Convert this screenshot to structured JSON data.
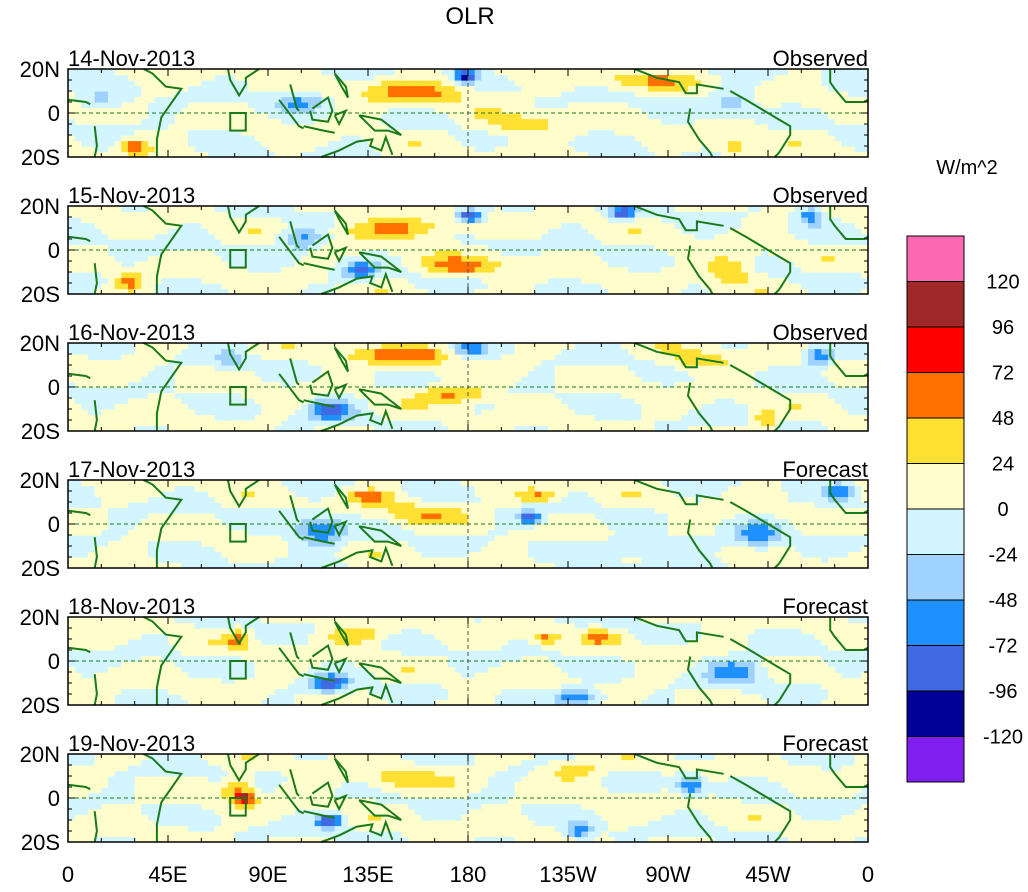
{
  "chart_data": {
    "type": "heatmap",
    "title": "OLR",
    "units_label": "W/m^2",
    "x_ticks": [
      {
        "lon": 0,
        "label": "0"
      },
      {
        "lon": 45,
        "label": "45E"
      },
      {
        "lon": 90,
        "label": "90E"
      },
      {
        "lon": 135,
        "label": "135E"
      },
      {
        "lon": 180,
        "label": "180"
      },
      {
        "lon": 225,
        "label": "135W"
      },
      {
        "lon": 270,
        "label": "90W"
      },
      {
        "lon": 315,
        "label": "45W"
      },
      {
        "lon": 360,
        "label": "0"
      }
    ],
    "y_ticks": [
      {
        "lat": 20,
        "label": "20N"
      },
      {
        "lat": 0,
        "label": "0"
      },
      {
        "lat": -20,
        "label": "20S"
      }
    ],
    "xlim": [
      0,
      360
    ],
    "ylim": [
      -20,
      20
    ],
    "levels": [
      -120,
      -96,
      -72,
      -48,
      -24,
      0,
      24,
      48,
      72,
      96,
      120
    ],
    "level_labels": [
      "-120",
      "-96",
      "-72",
      "-48",
      "-24",
      "0",
      "24",
      "48",
      "72",
      "96",
      "120"
    ],
    "colors": [
      "#8020F0",
      "#000096",
      "#4169E1",
      "#1E90FF",
      "#A0D2FF",
      "#D2F5FF",
      "#FFFDCC",
      "#FFE033",
      "#FF7000",
      "#FF0000",
      "#A02828",
      "#FF69B4"
    ],
    "panels": [
      {
        "date": "14-Nov-2013",
        "type": "Observed",
        "anomalies": [
          [
            155,
            10,
            50,
            25,
            5
          ],
          [
            179,
            17,
            -110,
            5,
            3
          ],
          [
            30,
            -15,
            60,
            6,
            4
          ],
          [
            260,
            15,
            35,
            25,
            4
          ],
          [
            15,
            5,
            -40,
            10,
            5
          ],
          [
            105,
            5,
            -50,
            10,
            5
          ],
          [
            298,
            5,
            -40,
            10,
            6
          ],
          [
            300,
            -15,
            40,
            8,
            4
          ],
          [
            205,
            -5,
            35,
            20,
            5
          ]
        ]
      },
      {
        "date": "15-Nov-2013",
        "type": "Observed",
        "anomalies": [
          [
            150,
            10,
            50,
            28,
            5
          ],
          [
            181,
            16,
            -110,
            6,
            3
          ],
          [
            250,
            17,
            -100,
            5,
            3
          ],
          [
            178,
            -7,
            55,
            18,
            4
          ],
          [
            28,
            -14,
            60,
            6,
            4
          ],
          [
            298,
            -9,
            50,
            10,
            6
          ],
          [
            105,
            5,
            -60,
            10,
            5
          ],
          [
            131,
            -9,
            -70,
            8,
            4
          ],
          [
            334,
            16,
            -70,
            6,
            4
          ]
        ]
      },
      {
        "date": "16-Nov-2013",
        "type": "Observed",
        "anomalies": [
          [
            150,
            15,
            55,
            25,
            4
          ],
          [
            174,
            -3,
            55,
            16,
            4
          ],
          [
            118,
            -10,
            -80,
            10,
            5
          ],
          [
            181,
            17,
            -60,
            8,
            3
          ],
          [
            338,
            14,
            -80,
            6,
            4
          ],
          [
            284,
            12,
            35,
            15,
            5
          ],
          [
            314,
            -15,
            50,
            5,
            4
          ],
          [
            73,
            12,
            -40,
            6,
            5
          ]
        ]
      },
      {
        "date": "17-Nov-2013",
        "type": "Forecast",
        "anomalies": [
          [
            136,
            13,
            55,
            10,
            3
          ],
          [
            212,
            13,
            50,
            10,
            3
          ],
          [
            208,
            3,
            -100,
            5,
            3
          ],
          [
            113,
            -3,
            -70,
            12,
            7
          ],
          [
            311,
            -5,
            -60,
            10,
            6
          ],
          [
            347,
            15,
            -60,
            6,
            4
          ],
          [
            258,
            -10,
            -25,
            30,
            5
          ],
          [
            160,
            5,
            35,
            20,
            5
          ]
        ]
      },
      {
        "date": "18-Nov-2013",
        "type": "Forecast",
        "anomalies": [
          [
            215,
            11,
            50,
            7,
            3
          ],
          [
            240,
            11,
            45,
            7,
            3
          ],
          [
            118,
            -10,
            -90,
            8,
            4
          ],
          [
            230,
            -16,
            -80,
            10,
            4
          ],
          [
            77,
            10,
            50,
            5,
            4
          ],
          [
            300,
            -4,
            -60,
            12,
            6
          ],
          [
            130,
            12,
            35,
            15,
            4
          ]
        ]
      },
      {
        "date": "19-Nov-2013",
        "type": "Forecast",
        "anomalies": [
          [
            77,
            4,
            60,
            7,
            6
          ],
          [
            80,
            0,
            78,
            4,
            2
          ],
          [
            118,
            -10,
            -110,
            6,
            3
          ],
          [
            228,
            13,
            50,
            12,
            4
          ],
          [
            280,
            6,
            -80,
            6,
            4
          ],
          [
            230,
            -15,
            -70,
            6,
            4
          ],
          [
            150,
            8,
            35,
            18,
            5
          ]
        ]
      }
    ]
  }
}
